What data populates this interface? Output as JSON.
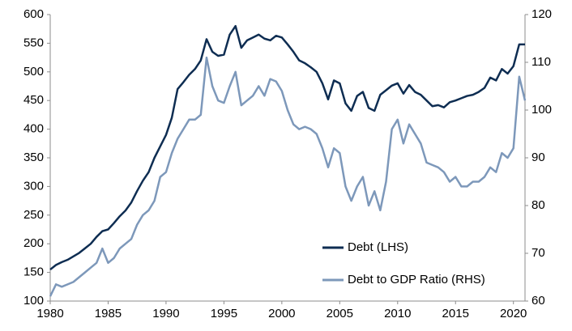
{
  "chart_data": {
    "type": "line",
    "x": [
      1980,
      1980.5,
      1981,
      1981.5,
      1982,
      1982.5,
      1983,
      1983.5,
      1984,
      1984.5,
      1985,
      1985.5,
      1986,
      1986.5,
      1987,
      1987.5,
      1988,
      1988.5,
      1989,
      1989.5,
      1990,
      1990.5,
      1991,
      1991.5,
      1992,
      1992.5,
      1993,
      1993.5,
      1994,
      1994.5,
      1995,
      1995.5,
      1996,
      1996.5,
      1997,
      1997.5,
      1998,
      1998.5,
      1999,
      1999.5,
      2000,
      2000.5,
      2001,
      2001.5,
      2002,
      2002.5,
      2003,
      2003.5,
      2004,
      2004.5,
      2005,
      2005.5,
      2006,
      2006.5,
      2007,
      2007.5,
      2008,
      2008.5,
      2009,
      2009.5,
      2010,
      2010.5,
      2011,
      2011.5,
      2012,
      2012.5,
      2013,
      2013.5,
      2014,
      2014.5,
      2015,
      2015.5,
      2016,
      2016.5,
      2017,
      2017.5,
      2018,
      2018.5,
      2019,
      2019.5,
      2020,
      2020.5,
      2021
    ],
    "series": [
      {
        "name": "Debt (LHS)",
        "color": "#0e2d52",
        "axis": "y",
        "values": [
          155,
          163,
          168,
          172,
          178,
          184,
          192,
          200,
          212,
          222,
          225,
          236,
          248,
          258,
          272,
          292,
          310,
          325,
          350,
          370,
          390,
          420,
          470,
          482,
          495,
          505,
          520,
          557,
          535,
          528,
          530,
          565,
          580,
          542,
          555,
          560,
          565,
          558,
          555,
          563,
          560,
          548,
          535,
          520,
          515,
          508,
          500,
          480,
          452,
          485,
          480,
          445,
          432,
          458,
          465,
          437,
          432,
          460,
          468,
          476,
          480,
          462,
          477,
          465,
          460,
          450,
          440,
          442,
          438,
          447,
          450,
          454,
          458,
          460,
          465,
          472,
          490,
          485,
          505,
          497,
          510,
          548,
          548
        ]
      },
      {
        "name": "Debt to GDP Ratio (RHS)",
        "color": "#7d98ba",
        "axis": "y2",
        "values": [
          61,
          63.5,
          63,
          63.5,
          64,
          65,
          66,
          67,
          68,
          71,
          68,
          69,
          71,
          72,
          73,
          76,
          78,
          79,
          81,
          86,
          87,
          91,
          94,
          96,
          98,
          98,
          99,
          111,
          105,
          102,
          101.5,
          105,
          108,
          101,
          102,
          103,
          105,
          103,
          106.5,
          106,
          104,
          100,
          97,
          96,
          96.5,
          96,
          95,
          92,
          88,
          92,
          91,
          84,
          81,
          84,
          86,
          80,
          83,
          79,
          85,
          96,
          98,
          93,
          97,
          95,
          93,
          89,
          88.5,
          88,
          87,
          85,
          86,
          84,
          84,
          85,
          85,
          86,
          88,
          87,
          91,
          90,
          92,
          107,
          102
        ]
      }
    ],
    "xlim": [
      1980,
      2021
    ],
    "xticks": [
      1980,
      1985,
      1990,
      1995,
      2000,
      2005,
      2010,
      2015,
      2020
    ],
    "ylim": [
      100,
      600
    ],
    "yticks": [
      100,
      150,
      200,
      250,
      300,
      350,
      400,
      450,
      500,
      550,
      600
    ],
    "y2lim": [
      60,
      120
    ],
    "y2ticks": [
      60,
      70,
      80,
      90,
      100,
      110,
      120
    ],
    "legend": "lower right"
  }
}
